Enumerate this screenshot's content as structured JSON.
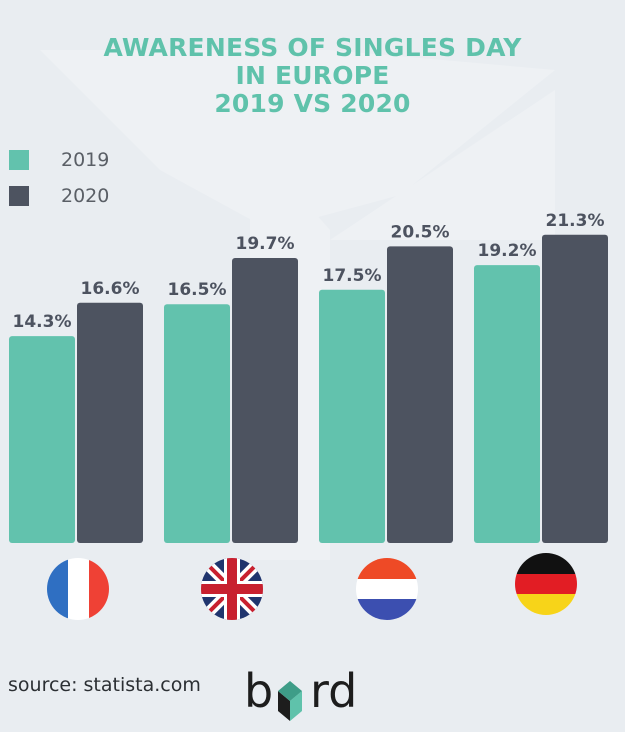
{
  "title_lines": [
    "AWARENESS OF SINGLES DAY",
    "IN EUROPE",
    "2019 VS 2020"
  ],
  "source": "source: statista.com",
  "brand": "byrd",
  "colors": {
    "series_2019": "#62c2ad",
    "series_2020": "#4d5360",
    "title": "#5fc2ab",
    "label": "#4d5360",
    "background": "#e9edf1"
  },
  "chart_data": {
    "type": "bar",
    "categories": [
      "France",
      "United Kingdom",
      "Netherlands",
      "Germany"
    ],
    "category_icons": [
      "france-flag-icon",
      "uk-flag-icon",
      "netherlands-flag-icon",
      "germany-flag-icon"
    ],
    "series": [
      {
        "name": "2019",
        "values": [
          14.3,
          16.5,
          17.5,
          19.2
        ],
        "labels": [
          "14.3%",
          "16.5%",
          "17.5%",
          "19.2%"
        ]
      },
      {
        "name": "2020",
        "values": [
          16.6,
          19.7,
          20.5,
          21.3
        ],
        "labels": [
          "16.6%",
          "19.7%",
          "20.5%",
          "21.3%"
        ]
      }
    ],
    "ylim": [
      0,
      100
    ],
    "title": "AWARENESS OF SINGLES DAY IN EUROPE 2019 VS 2020",
    "legend": "top-left",
    "grid": false
  }
}
